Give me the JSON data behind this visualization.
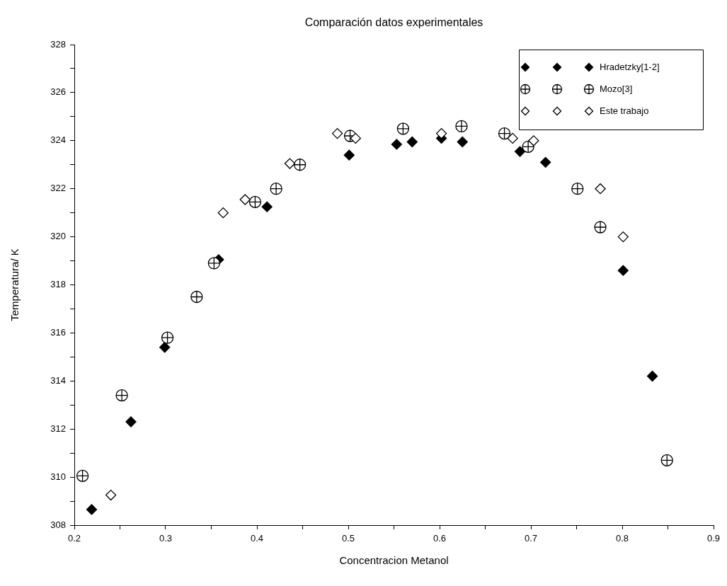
{
  "chart_data": {
    "type": "scatter",
    "title": "Comparación datos experimentales",
    "xlabel": "Concentracion Metanol",
    "ylabel": "Temperatura/ K",
    "series": [
      {
        "name": "Hradetzky[1-2]",
        "color": "#000000",
        "marker": "diamond",
        "x": [
          0.219,
          0.262,
          0.299,
          0.358,
          0.411,
          0.501,
          0.553,
          0.57,
          0.602,
          0.625,
          0.688,
          0.716,
          0.801,
          0.833
        ],
        "values": [
          308.65,
          312.3,
          315.4,
          319.05,
          321.25,
          323.4,
          323.85,
          323.95,
          324.1,
          323.95,
          323.55,
          323.1,
          318.6,
          314.2
        ]
      },
      {
        "name": "Mozo[3]",
        "color": "#ffffff",
        "marker": "circle",
        "x": [
          0.209,
          0.252,
          0.302,
          0.334,
          0.353,
          0.398,
          0.421,
          0.447,
          0.502,
          0.56,
          0.624,
          0.671,
          0.697,
          0.751,
          0.776,
          0.849
        ],
        "values": [
          310.05,
          313.4,
          315.8,
          317.5,
          318.9,
          321.45,
          322.0,
          323.0,
          324.2,
          324.5,
          324.6,
          324.3,
          323.75,
          322.0,
          320.4,
          310.7
        ]
      },
      {
        "name": "Este trabajo",
        "color": "#ffffff",
        "marker": "diamond",
        "x": [
          0.24,
          0.363,
          0.387,
          0.436,
          0.488,
          0.508,
          0.602,
          0.68,
          0.703,
          0.776,
          0.801
        ],
        "values": [
          309.25,
          321.0,
          321.55,
          323.05,
          324.3,
          324.1,
          324.3,
          324.1,
          324.0,
          322.0,
          320.0
        ]
      }
    ],
    "xlim": [
      0.2,
      0.9
    ],
    "xticks": [
      0.2,
      {
        "value": 0.25,
        "label": null
      },
      0.3,
      {
        "value": 0.35,
        "label": null
      },
      0.4,
      {
        "value": 0.45,
        "label": null
      },
      0.5,
      {
        "value": 0.55,
        "label": null
      },
      0.6,
      {
        "value": 0.65,
        "label": null
      },
      0.7,
      {
        "value": 0.75,
        "label": null
      },
      0.8,
      {
        "value": 0.85,
        "label": null
      },
      0.9
    ],
    "ylim": [
      308,
      328
    ],
    "yticks": [
      308,
      {
        "value": 309,
        "label": null
      },
      310,
      {
        "value": 311,
        "label": null
      },
      312,
      {
        "value": 313,
        "label": null
      },
      314,
      {
        "value": 315,
        "label": null
      },
      316,
      {
        "value": 317,
        "label": null
      },
      318,
      {
        "value": 319,
        "label": null
      },
      320,
      {
        "value": 321,
        "label": null
      },
      322,
      {
        "value": 323,
        "label": null
      },
      324,
      {
        "value": 325,
        "label": null
      },
      326,
      {
        "value": 327,
        "label": null
      },
      328
    ],
    "grid": false,
    "legend": "top right"
  }
}
